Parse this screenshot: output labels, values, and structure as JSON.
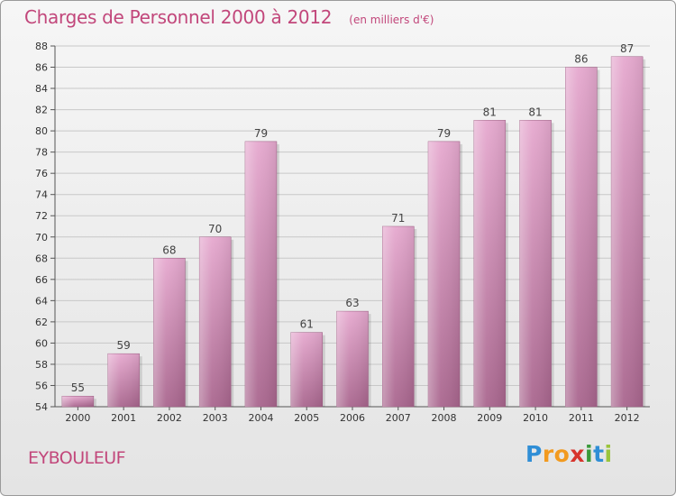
{
  "title": "Charges de Personnel 2000 à 2012",
  "unit": "(en milliers d'€)",
  "commune": "EYBOULEUF",
  "logo": {
    "letters": [
      "P",
      "r",
      "o",
      "x",
      "i",
      "t",
      "i"
    ],
    "colors": [
      "#2f8ed6",
      "#f29a1f",
      "#f29a1f",
      "#d7342c",
      "#3a9a3a",
      "#2f8ed6",
      "#9ac43c"
    ]
  },
  "colors": {
    "bar_light": "#e6a9cf",
    "bar_dark": "#a9668e",
    "title": "#c2477b"
  },
  "chart_data": {
    "type": "bar",
    "categories": [
      "2000",
      "2001",
      "2002",
      "2003",
      "2004",
      "2005",
      "2006",
      "2007",
      "2008",
      "2009",
      "2010",
      "2011",
      "2012"
    ],
    "values": [
      55,
      59,
      68,
      70,
      79,
      61,
      63,
      71,
      79,
      81,
      81,
      86,
      87
    ],
    "ylim": [
      54,
      88
    ],
    "yticks": [
      54,
      56,
      58,
      60,
      62,
      64,
      66,
      68,
      70,
      72,
      74,
      76,
      78,
      80,
      82,
      84,
      86,
      88
    ],
    "grid": true,
    "data_labels": true
  }
}
